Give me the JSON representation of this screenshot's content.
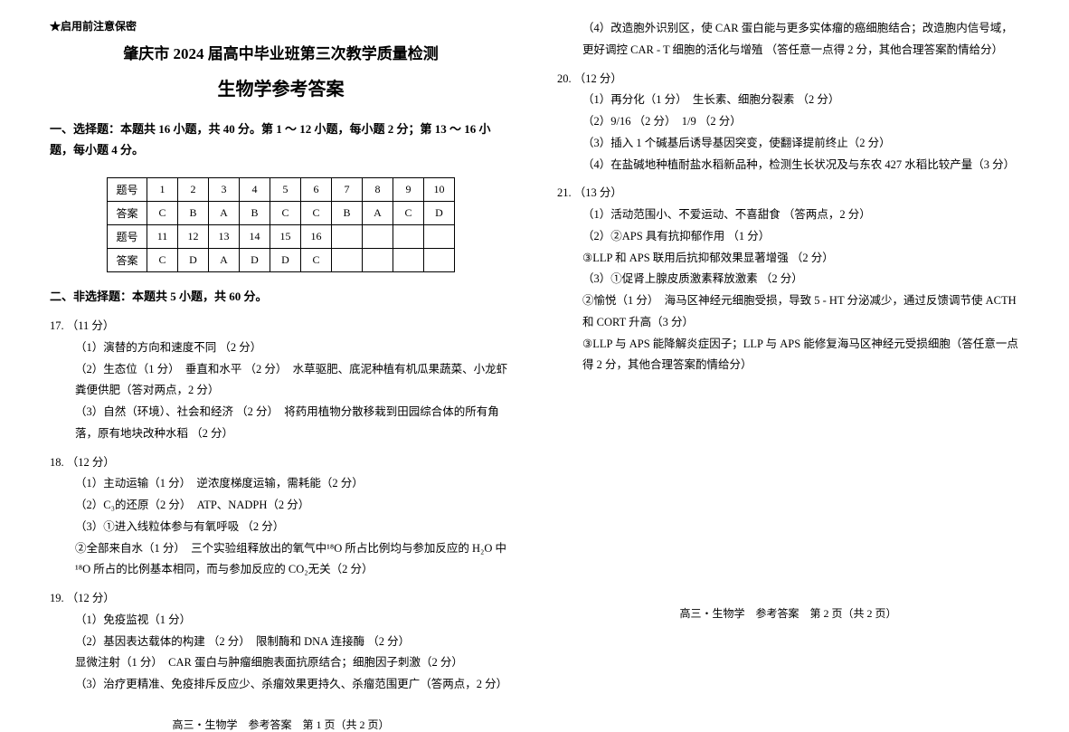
{
  "confidential": "★启用前注意保密",
  "title": "肇庆市 2024 届高中毕业班第三次教学质量检测",
  "subtitle": "生物学参考答案",
  "section1": {
    "header": "一、选择题：本题共 16 小题，共 40 分。第 1 ～ 12 小题，每小题 2 分；第 13 ～ 16 小题，每小题 4 分。",
    "row_label1": "题号",
    "row_label2": "答案",
    "nums1": [
      "1",
      "2",
      "3",
      "4",
      "5",
      "6",
      "7",
      "8",
      "9",
      "10"
    ],
    "ans1": [
      "C",
      "B",
      "A",
      "B",
      "C",
      "C",
      "B",
      "A",
      "C",
      "D"
    ],
    "nums2": [
      "11",
      "12",
      "13",
      "14",
      "15",
      "16",
      "",
      "",
      "",
      ""
    ],
    "ans2": [
      "C",
      "D",
      "A",
      "D",
      "D",
      "C",
      "",
      "",
      "",
      ""
    ]
  },
  "section2_header": "二、非选择题：本题共 5 小题，共 60 分。",
  "q17": {
    "num": "17. （11 分）",
    "p1": "（1）演替的方向和速度不同 （2 分）",
    "p2": "（2）生态位（1 分）　垂直和水平 （2 分）　水草驱肥、底泥种植有机瓜果蔬菜、小龙虾粪便供肥（答对两点，2 分）",
    "p3": "（3）自然（环境）、社会和经济 （2 分）　将药用植物分散移栽到田园综合体的所有角落，原有地块改种水稻 （2 分）"
  },
  "q18": {
    "num": "18. （12 分）",
    "p1": "（1）主动运输（1 分）　逆浓度梯度运输，需耗能（2 分）",
    "p2": "（2）C₃的还原（2 分）　ATP、NADPH（2 分）",
    "p3": "（3）①进入线粒体参与有氧呼吸 （2 分）",
    "p4": "②全部来自水（1 分）　三个实验组释放出的氧气中¹⁸O 所占比例均与参加反应的 H₂O 中¹⁸O 所占的比例基本相同，而与参加反应的 CO₂无关（2 分）"
  },
  "q19": {
    "num": "19. （12 分）",
    "p1": "（1）免疫监视（1 分）",
    "p2": "（2）基因表达载体的构建 （2 分）　限制酶和 DNA 连接酶 （2 分）",
    "p3": "显微注射（1 分）　CAR 蛋白与肿瘤细胞表面抗原结合；细胞因子刺激（2 分）",
    "p4": "（3）治疗更精准、免疫排斥反应少、杀瘤效果更持久、杀瘤范围更广（答两点，2 分）",
    "p5": "（4）改造胞外识别区，使 CAR 蛋白能与更多实体瘤的癌细胞结合；改造胞内信号域，更好调控 CAR - T 细胞的活化与增殖 （答任意一点得 2 分，其他合理答案酌情给分）"
  },
  "q20": {
    "num": "20. （12 分）",
    "p1": "（1）再分化（1 分）　生长素、细胞分裂素 （2 分）",
    "p2": "（2）9/16 （2 分）　1/9 （2 分）",
    "p3": "（3）插入 1 个碱基后诱导基因突变，使翻译提前终止（2 分）",
    "p4": "（4）在盐碱地种植耐盐水稻新品种，检测生长状况及与东农 427 水稻比较产量（3 分）"
  },
  "q21": {
    "num": "21. （13 分）",
    "p1": "（1）活动范围小、不爱运动、不喜甜食 （答两点，2 分）",
    "p2": "（2）②APS 具有抗抑郁作用 （1 分）",
    "p3": "③LLP 和 APS 联用后抗抑郁效果显著增强 （2 分）",
    "p4": "（3）①促肾上腺皮质激素释放激素 （2 分）",
    "p5": "②愉悦（1 分）　海马区神经元细胞受损，导致 5 - HT 分泌减少，通过反馈调节使 ACTH 和 CORT 升高（3 分）",
    "p6": "③LLP 与 APS 能降解炎症因子；LLP 与 APS 能修复海马区神经元受损细胞（答任意一点得 2 分，其他合理答案酌情给分）"
  },
  "footer1": "高三・生物学　参考答案　第 1 页（共 2 页）",
  "footer2": "高三・生物学　参考答案　第 2 页（共 2 页）"
}
